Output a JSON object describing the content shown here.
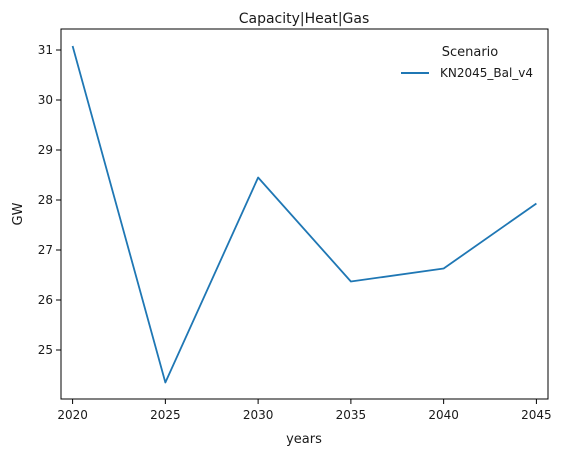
{
  "chart_data": {
    "type": "line",
    "title": "Capacity|Heat|Gas",
    "xlabel": "years",
    "ylabel": "GW",
    "x": [
      2020,
      2025,
      2030,
      2035,
      2040,
      2045
    ],
    "x_ticks": [
      "2020",
      "2025",
      "2030",
      "2035",
      "2040",
      "2045"
    ],
    "y_ticks": [
      25,
      26,
      27,
      28,
      29,
      30,
      31
    ],
    "y_tick_labels": [
      "25",
      "26",
      "27",
      "28",
      "29",
      "30",
      "31"
    ],
    "xlim": [
      2019.375,
      2045.625
    ],
    "ylim": [
      24.02,
      31.42
    ],
    "grid": false,
    "legend": {
      "title": "Scenario",
      "placement": "top-right"
    },
    "series": [
      {
        "name": "KN2045_Bal_v4",
        "color": "#1f77b4",
        "values": [
          31.08,
          24.35,
          28.45,
          26.37,
          26.63,
          27.93
        ]
      }
    ]
  }
}
